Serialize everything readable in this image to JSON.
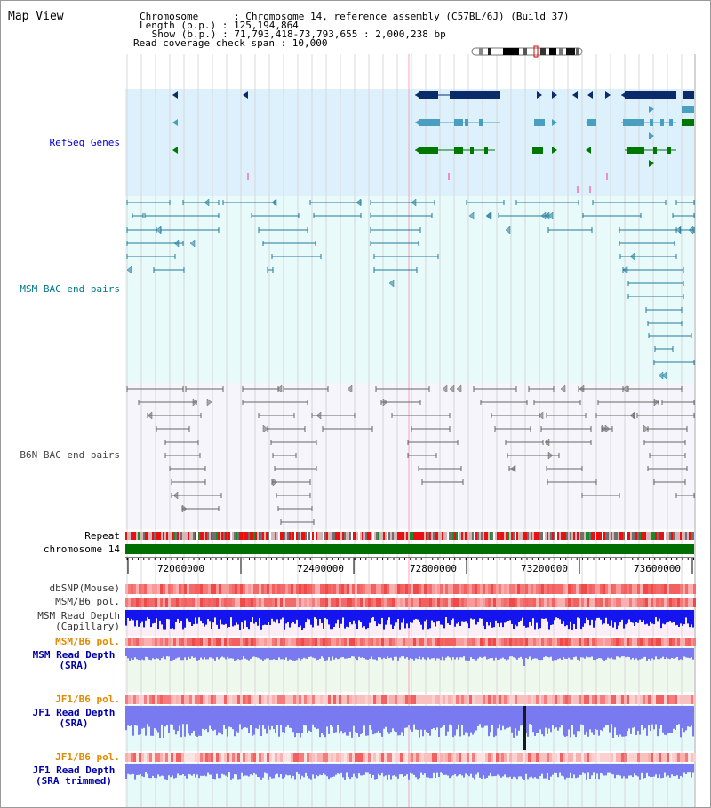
{
  "view_title": "Map View",
  "info": {
    "chromosome": "Chromosome      : Chromosome 14, reference assembly (C57BL/6J) (Build 37)",
    "length": "Length (b.p.) : 125,194,864",
    "show": " Show (b.p.) : 71,793,418-73,793,655 : 2,000,238 bp",
    "coverage": "Read coverage check span : 10,000"
  },
  "tracks": {
    "refseq": {
      "label": "RefSeq Genes",
      "color": "#0000cc"
    },
    "msm_bac": {
      "label": "MSM BAC end pairs",
      "color": "#007788"
    },
    "b6n_bac": {
      "label": "B6N BAC end pairs",
      "color": "#444444"
    },
    "repeat": {
      "label": "Repeat"
    },
    "chromosome": {
      "label": "chromosome 14"
    },
    "dbsnp": {
      "label": "dbSNP(Mouse)"
    },
    "msm_b6_pol_1": {
      "label": "MSM/B6 pol."
    },
    "msm_depth_cap": {
      "label": "MSM Read Depth",
      "sub": "(Capillary)"
    },
    "msm_b6_pol_2": {
      "label": "MSM/B6 pol."
    },
    "msm_depth_sra": {
      "label": "MSM Read Depth",
      "sub": "(SRA)"
    },
    "jf1_b6_pol_1": {
      "label": "JF1/B6 pol."
    },
    "jf1_depth_sra": {
      "label": "JF1 Read Depth",
      "sub": "(SRA)"
    },
    "jf1_b6_pol_2": {
      "label": "JF1/B6 pol."
    },
    "jf1_depth_trim": {
      "label": "JF1 Read Depth",
      "sub": "(SRA trimmed)"
    }
  },
  "axis": {
    "ticks": [
      "72000000",
      "72400000",
      "72800000",
      "73200000",
      "73600000"
    ]
  },
  "colors": {
    "refseq_bg": "#dcf1fb",
    "msm_bg": "#e8fafa",
    "b6n_bg": "#f5f5fb",
    "gene_navy": "#0a2a6a",
    "gene_teal": "#4a9ec0",
    "gene_green": "#007700",
    "bac_msm": "#1f7a99",
    "bac_b6n": "#666666",
    "depth_blue": "#1414ee",
    "depth_lavender": "#7a7af0"
  }
}
